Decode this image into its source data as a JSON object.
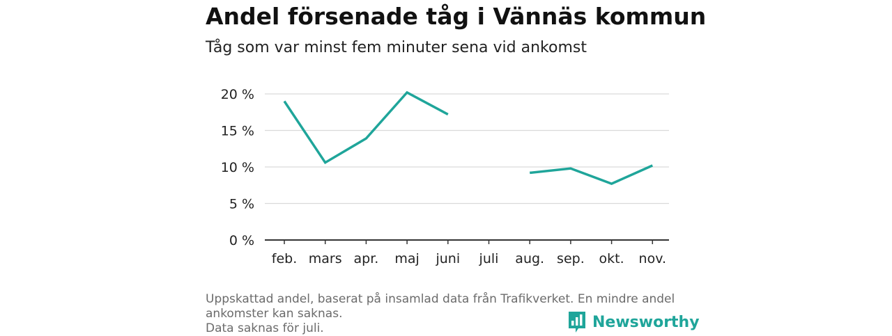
{
  "title": "Andel försenade tåg i Vännäs kommun",
  "subtitle": "Tåg som var minst fem minuter sena vid ankomst",
  "footnote": {
    "line1": "Uppskattad andel, baserat på insamlad data från Trafikverket. En mindre andel",
    "line2": "ankomster kan saknas.",
    "line3": "Data saknas för juli."
  },
  "brand": {
    "name": "Newsworthy",
    "logo_icon": "bar-chart-speech-bubble-icon",
    "color": "#1fa59a"
  },
  "chart_data": {
    "type": "line",
    "title": "Andel försenade tåg i Vännäs kommun",
    "subtitle": "Tåg som var minst fem minuter sena vid ankomst",
    "xlabel": "",
    "ylabel": "",
    "categories": [
      "feb.",
      "mars",
      "apr.",
      "maj",
      "juni",
      "juli",
      "aug.",
      "sep.",
      "okt.",
      "nov."
    ],
    "series": [
      {
        "values": [
          19.0,
          10.6,
          13.9,
          20.2,
          17.2,
          null,
          9.2,
          9.8,
          7.7,
          10.2
        ]
      }
    ],
    "ylim": [
      0,
      20
    ],
    "yticks": [
      0,
      5,
      10,
      15,
      20
    ],
    "ytick_labels": [
      "0 %",
      "5 %",
      "10 %",
      "15 %",
      "20 %"
    ],
    "grid": true,
    "line_color": "#1fa59a",
    "legend": "none"
  }
}
